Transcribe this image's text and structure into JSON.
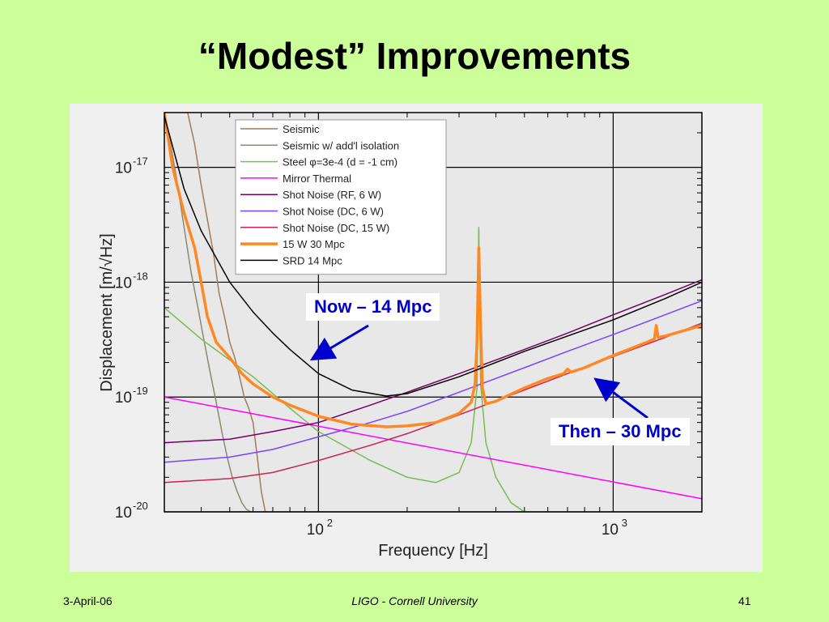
{
  "slide": {
    "title": "“Modest” Improvements",
    "footer_left": "3-April-06",
    "footer_center": "LIGO - Cornell University",
    "footer_right": "41"
  },
  "annotations": {
    "now_label": "Now – 14 Mpc",
    "then_label": "Then – 30 Mpc",
    "color": "#0000cc"
  },
  "chart_data": {
    "type": "line",
    "xlabel": "Frequency [Hz]",
    "ylabel": "Displacement [m/√Hz]",
    "xscale": "log",
    "yscale": "log",
    "xlim": [
      30,
      2000
    ],
    "ylim": [
      1e-20,
      3e-17
    ],
    "grid": true,
    "legend_position": "top-left",
    "x_ticks": [
      {
        "value": 100,
        "base": "10",
        "exp": "2"
      },
      {
        "value": 1000,
        "base": "10",
        "exp": "3"
      }
    ],
    "y_ticks": [
      {
        "value": 1e-17,
        "base": "10",
        "exp": "-17"
      },
      {
        "value": 1e-18,
        "base": "10",
        "exp": "-18"
      },
      {
        "value": 1e-19,
        "base": "10",
        "exp": "-19"
      },
      {
        "value": 1e-20,
        "base": "10",
        "exp": "-20"
      }
    ],
    "series": [
      {
        "name": "Seismic",
        "color": "#a57a5a",
        "width": 1.5,
        "x": [
          36,
          38,
          40,
          42,
          44,
          46,
          48,
          50,
          52,
          54,
          56,
          58,
          60,
          62,
          64,
          66
        ],
        "y": [
          3e-17,
          1.6e-17,
          7e-18,
          3.5e-18,
          1.8e-18,
          8e-19,
          5e-19,
          3e-19,
          2.2e-19,
          1.5e-19,
          1e-19,
          8e-20,
          6e-20,
          3e-20,
          1.5e-20,
          1e-20
        ]
      },
      {
        "name": "Seismic w/ add'l isolation",
        "color": "#8a8a72",
        "width": 1.5,
        "x": [
          31,
          33,
          35,
          37,
          39,
          41,
          43,
          45,
          47,
          49,
          51,
          53,
          55,
          57,
          59
        ],
        "y": [
          2e-17,
          8e-18,
          3e-18,
          1.2e-18,
          6e-19,
          3e-19,
          1.6e-19,
          9e-20,
          5e-20,
          3e-20,
          2e-20,
          1.5e-20,
          1.2e-20,
          1.05e-20,
          1e-20
        ]
      },
      {
        "name": "Steel φ=3e-4 (d = -1 cm)",
        "color": "#77bb55",
        "width": 1.5,
        "x": [
          30,
          40,
          50,
          60,
          80,
          100,
          150,
          200,
          250,
          300,
          330,
          345,
          350,
          355,
          370,
          400,
          450,
          500
        ],
        "y": [
          6e-19,
          3.2e-19,
          2.1e-19,
          1.5e-19,
          8e-20,
          5e-20,
          2.8e-20,
          2e-20,
          1.8e-20,
          2.2e-20,
          4e-20,
          1.2e-19,
          3e-18,
          1.3e-19,
          4e-20,
          2e-20,
          1.2e-20,
          1e-20
        ]
      },
      {
        "name": "Mirror Thermal",
        "color": "#ff00ff",
        "width": 1.5,
        "x": [
          30,
          2000
        ],
        "y": [
          1e-19,
          1.3e-20
        ]
      },
      {
        "name": "Shot Noise (RF, 6 W)",
        "color": "#770066",
        "width": 1.5,
        "x": [
          30,
          50,
          70,
          100,
          150,
          200,
          300,
          500,
          700,
          1000,
          1500,
          2000
        ],
        "y": [
          4e-20,
          4.3e-20,
          5e-20,
          6e-20,
          8.5e-20,
          1.1e-19,
          1.6e-19,
          2.6e-19,
          3.6e-19,
          5.2e-19,
          7.8e-19,
          1.05e-18
        ]
      },
      {
        "name": "Shot Noise (DC, 6 W)",
        "color": "#7744ff",
        "width": 1.5,
        "x": [
          30,
          50,
          70,
          100,
          150,
          200,
          300,
          500,
          700,
          1000,
          1500,
          2000
        ],
        "y": [
          2.7e-20,
          3e-20,
          3.5e-20,
          4.5e-20,
          6e-20,
          7.5e-20,
          1.1e-19,
          1.8e-19,
          2.5e-19,
          3.5e-19,
          5.2e-19,
          6.9e-19
        ]
      },
      {
        "name": "Shot Noise (DC, 15 W)",
        "color": "#cc2255",
        "width": 1.5,
        "x": [
          30,
          50,
          70,
          100,
          150,
          200,
          300,
          500,
          700,
          1000,
          1500,
          2000
        ],
        "y": [
          1.8e-20,
          1.95e-20,
          2.2e-20,
          2.8e-20,
          3.8e-20,
          4.8e-20,
          7e-20,
          1.15e-19,
          1.6e-19,
          2.25e-19,
          3.3e-19,
          4.4e-19
        ]
      },
      {
        "name": "15 W 30 Mpc",
        "color": "#ff8822",
        "width": 3.5,
        "x": [
          30,
          32,
          35,
          38,
          40,
          42,
          45,
          50,
          55,
          60,
          70,
          80,
          100,
          130,
          170,
          200,
          250,
          300,
          330,
          340,
          345,
          350,
          355,
          360,
          370,
          400,
          500,
          600,
          680,
          700,
          720,
          800,
          1000,
          1300,
          1380,
          1400,
          1420,
          1500,
          2000
        ],
        "y": [
          3e-17,
          1e-17,
          4e-18,
          2e-18,
          1e-18,
          5e-19,
          3e-19,
          2.2e-19,
          1.6e-19,
          1.3e-19,
          1e-19,
          8.5e-20,
          6.8e-20,
          5.8e-20,
          5.5e-20,
          5.6e-20,
          6e-20,
          7.2e-20,
          9e-20,
          1.3e-19,
          3e-19,
          2e-18,
          4e-19,
          1.2e-19,
          8.7e-20,
          9.2e-20,
          1.2e-19,
          1.45e-19,
          1.6e-19,
          1.75e-19,
          1.65e-19,
          1.8e-19,
          2.3e-19,
          3e-19,
          3.2e-19,
          4.2e-19,
          3.3e-19,
          3.4e-19,
          4.2e-19
        ]
      },
      {
        "name": "SRD  14 Mpc",
        "color": "#000000",
        "width": 1.5,
        "x": [
          30,
          35,
          40,
          50,
          60,
          70,
          80,
          100,
          130,
          170,
          200,
          300,
          500,
          700,
          1000,
          1500,
          2000
        ],
        "y": [
          2.8e-17,
          6.5e-18,
          2.8e-18,
          1e-18,
          5.5e-19,
          3.6e-19,
          2.6e-19,
          1.6e-19,
          1.15e-19,
          1.02e-19,
          1.07e-19,
          1.5e-19,
          2.5e-19,
          3.4e-19,
          4.7e-19,
          7.2e-19,
          1e-18
        ]
      }
    ]
  }
}
